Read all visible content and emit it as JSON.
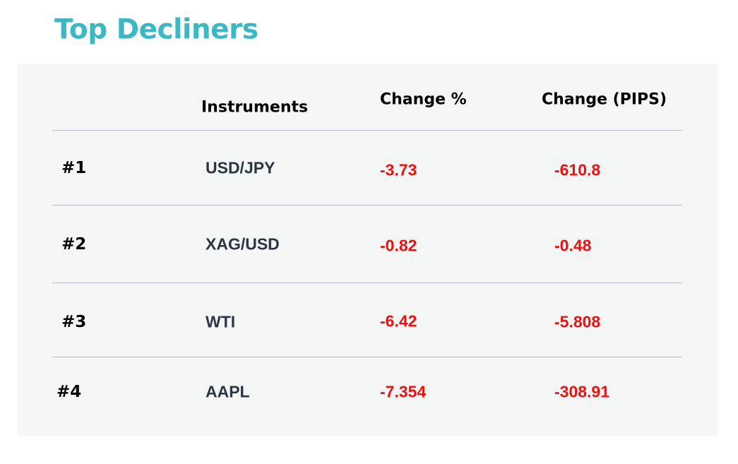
{
  "header": {
    "title": "Top Decliners"
  },
  "table": {
    "columns": [
      "Instruments",
      "Change %",
      "Change (PIPS)"
    ],
    "rows": [
      [
        "#1",
        "USD/JPY",
        "-3.73",
        "-610.8"
      ],
      [
        "#2",
        "XAG/USD",
        "-0.82",
        "-0.48"
      ],
      [
        "#3",
        "WTI",
        "-6.42",
        "-5.808"
      ],
      [
        "#4",
        "AAPL",
        "-7.354",
        "-308.91"
      ]
    ]
  }
}
